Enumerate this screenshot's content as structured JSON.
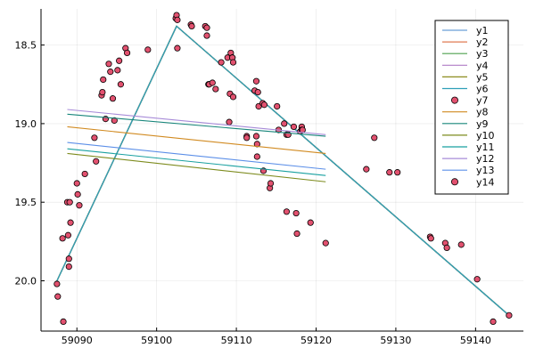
{
  "chart_data": {
    "type": "line",
    "title": "",
    "xlabel": "",
    "ylabel": "",
    "xlim": [
      59085.5,
      59146.0
    ],
    "ylim": [
      20.32,
      18.27
    ],
    "y_inverted": true,
    "grid": true,
    "legend_position": "top-right",
    "xticks": [
      59090,
      59100,
      59110,
      59120,
      59130,
      59140
    ],
    "xtick_labels": [
      "59090",
      "59100",
      "59110",
      "59120",
      "59130",
      "59140"
    ],
    "yticks": [
      18.5,
      19.0,
      19.5,
      20.0
    ],
    "ytick_labels": [
      "18.5",
      "19.0",
      "19.5",
      "20.0"
    ],
    "series": [
      {
        "name": "y1",
        "kind": "line",
        "color": "#6A9FD6",
        "x": [
          59087.5,
          59102.5,
          59144.2
        ],
        "y": [
          20.0,
          18.38,
          20.22
        ]
      },
      {
        "name": "y2",
        "kind": "line",
        "color": "#E07A52",
        "x": [
          59087.5,
          59102.5,
          59144.2
        ],
        "y": [
          20.0,
          18.38,
          20.22
        ]
      },
      {
        "name": "y3",
        "kind": "line",
        "color": "#4FA04F",
        "x": [
          59087.5,
          59102.5,
          59144.2
        ],
        "y": [
          20.0,
          18.38,
          20.22
        ]
      },
      {
        "name": "y4",
        "kind": "line",
        "color": "#B07CC6",
        "x": [
          59087.5,
          59102.5,
          59144.2
        ],
        "y": [
          20.0,
          18.38,
          20.22
        ]
      },
      {
        "name": "y5",
        "kind": "line",
        "color": "#8C8C1E",
        "x": [
          59087.5,
          59102.5,
          59144.2
        ],
        "y": [
          20.0,
          18.38,
          20.22
        ]
      },
      {
        "name": "y6",
        "kind": "line",
        "color": "#2F9FB8",
        "x": [
          59087.5,
          59102.5,
          59144.2
        ],
        "y": [
          20.0,
          18.38,
          20.22
        ]
      },
      {
        "name": "y7",
        "kind": "scatter",
        "color": "#E2516F",
        "x": [
          59087.5,
          59087.6,
          59088.2,
          59088.3,
          59088.8,
          59088.9,
          59089.0,
          59089.0,
          59089.1,
          59089.2,
          59090.0,
          59090.1,
          59090.3,
          59091.0,
          59092.2,
          59092.4,
          59093.1,
          59093.2,
          59093.3,
          59093.6,
          59094.0,
          59094.2,
          59094.5,
          59094.7,
          59095.1,
          59095.3,
          59095.5,
          59096.1,
          59096.3,
          59098.9,
          59102.4,
          59102.5,
          59102.6,
          59102.6,
          59104.3,
          59104.4,
          59106.1,
          59106.3,
          59106.3,
          59106.5,
          59106.6,
          59107.0,
          59107.4,
          59108.1,
          59108.9,
          59109.1,
          59109.2,
          59109.3,
          59109.5,
          59109.5,
          59109.6,
          59109.6,
          59111.3,
          59111.3,
          59112.3,
          59112.5,
          59112.5,
          59112.6,
          59112.6,
          59112.7,
          59112.8,
          59113.3,
          59113.4,
          59113.5,
          59114.2,
          59114.3,
          59115.1,
          59115.3,
          59116.0,
          59116.3,
          59116.3,
          59116.5,
          59117.2,
          59117.5,
          59117.6,
          59118.0,
          59118.2,
          59118.2,
          59118.3,
          59119.3,
          59121.2,
          59126.3,
          59127.3,
          59129.2,
          59130.2,
          59134.3,
          59134.4,
          59136.2,
          59136.4,
          59138.2,
          59140.2,
          59142.2,
          59144.2
        ],
        "y": [
          20.02,
          20.1,
          19.73,
          20.26,
          19.5,
          19.71,
          19.86,
          19.91,
          19.5,
          19.63,
          19.38,
          19.45,
          19.52,
          19.32,
          19.09,
          19.24,
          18.82,
          18.8,
          18.72,
          18.97,
          18.62,
          18.67,
          18.84,
          18.98,
          18.66,
          18.6,
          18.75,
          18.52,
          18.55,
          18.53,
          18.33,
          18.31,
          18.34,
          18.52,
          18.37,
          18.38,
          18.38,
          18.44,
          18.39,
          18.75,
          18.75,
          18.74,
          18.78,
          18.61,
          18.58,
          18.99,
          18.81,
          18.55,
          18.58,
          18.58,
          18.61,
          18.83,
          19.08,
          19.09,
          18.79,
          18.73,
          19.08,
          19.13,
          19.21,
          18.8,
          18.89,
          18.87,
          19.3,
          18.88,
          19.41,
          19.38,
          18.89,
          19.04,
          19.0,
          19.07,
          19.56,
          19.07,
          19.02,
          19.57,
          19.7,
          19.05,
          19.02,
          19.04,
          19.04,
          19.63,
          19.76,
          19.29,
          19.09,
          19.31,
          19.31,
          19.72,
          19.73,
          19.76,
          19.79,
          19.77,
          19.99,
          20.26,
          20.22
        ]
      },
      {
        "name": "y8",
        "kind": "line",
        "color": "#D18A20",
        "x": [
          59088.8,
          59121.2
        ],
        "y": [
          19.02,
          19.19
        ]
      },
      {
        "name": "y9",
        "kind": "line",
        "color": "#16857A",
        "x": [
          59088.8,
          59121.2
        ],
        "y": [
          18.94,
          19.08
        ]
      },
      {
        "name": "y10",
        "kind": "line",
        "color": "#7D8B1E",
        "x": [
          59088.8,
          59121.2
        ],
        "y": [
          19.19,
          19.37
        ]
      },
      {
        "name": "y11",
        "kind": "line",
        "color": "#18A0A0",
        "x": [
          59088.8,
          59121.2
        ],
        "y": [
          19.16,
          19.33
        ]
      },
      {
        "name": "y12",
        "kind": "line",
        "color": "#A78BD8",
        "x": [
          59088.8,
          59121.2
        ],
        "y": [
          18.91,
          19.07
        ]
      },
      {
        "name": "y13",
        "kind": "line",
        "color": "#5C8FE8",
        "x": [
          59088.8,
          59121.2
        ],
        "y": [
          19.12,
          19.29
        ]
      },
      {
        "name": "y14",
        "kind": "scatter",
        "color": "#E2516F",
        "x": [],
        "y": []
      }
    ]
  },
  "legend": {
    "labels": [
      "y1",
      "y2",
      "y3",
      "y4",
      "y5",
      "y6",
      "y7",
      "y8",
      "y9",
      "y10",
      "y11",
      "y12",
      "y13",
      "y14"
    ]
  }
}
